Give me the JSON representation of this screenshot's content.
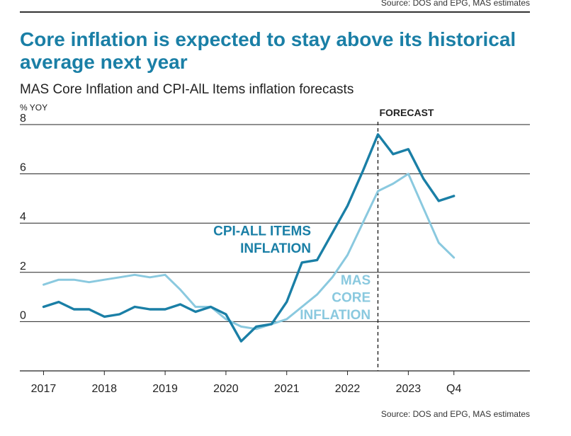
{
  "source_top": "Source: DOS and EPG, MAS estimates",
  "title": "Core inflation is expected to stay above its historical average next year",
  "subtitle": "MAS Core Inflation and CPI-AlL Items inflation forecasts",
  "source_bottom": "Source: DOS and EPG, MAS estimates",
  "colors": {
    "title": "#1a7fa6",
    "cpi_line": "#1a7fa6",
    "core_line": "#8ac9df",
    "grid": "#222222"
  },
  "chart_data": {
    "type": "line",
    "title": "Core inflation is expected to stay above its historical average next year",
    "ylabel": "% YOY",
    "ylim": [
      -2,
      8
    ],
    "yticks": [
      0,
      2,
      4,
      6,
      8
    ],
    "ytick_labels": [
      "0",
      "2",
      "4",
      "6",
      "8"
    ],
    "x_range": [
      2016.75,
      2025.0
    ],
    "xticks": [
      2017,
      2018,
      2019,
      2020,
      2021,
      2022,
      2023,
      2023.75
    ],
    "xtick_labels": [
      "2017",
      "2018",
      "2019",
      "2020",
      "2021",
      "2022",
      "2023",
      "Q4"
    ],
    "forecast_x": 2022.5,
    "forecast_label": "FORECAST",
    "series": [
      {
        "name": "CPI-ALL ITEMS INFLATION",
        "label_lines": [
          "CPI-ALL ITEMS",
          "INFLATION"
        ],
        "label_align": "end",
        "label_x": 2021.4,
        "label_y": [
          3.5,
          2.8
        ],
        "x": [
          2017.0,
          2017.25,
          2017.5,
          2017.75,
          2018.0,
          2018.25,
          2018.5,
          2018.75,
          2019.0,
          2019.25,
          2019.5,
          2019.75,
          2020.0,
          2020.25,
          2020.5,
          2020.75,
          2021.0,
          2021.25,
          2021.5,
          2021.75,
          2022.0,
          2022.25,
          2022.5,
          2022.75,
          2023.0,
          2023.25,
          2023.5,
          2023.75
        ],
        "values": [
          0.6,
          0.8,
          0.5,
          0.5,
          0.2,
          0.3,
          0.6,
          0.5,
          0.5,
          0.7,
          0.4,
          0.6,
          0.3,
          -0.8,
          -0.2,
          -0.1,
          0.8,
          2.4,
          2.5,
          3.6,
          4.7,
          6.1,
          7.6,
          6.8,
          7.0,
          5.8,
          4.9,
          5.1
        ]
      },
      {
        "name": "MAS CORE INFLATION",
        "label_lines": [
          "MAS",
          "CORE",
          "INFLATION"
        ],
        "label_align": "end",
        "label_x": 2022.38,
        "label_y": [
          1.5,
          0.8,
          0.1
        ],
        "x": [
          2017.0,
          2017.25,
          2017.5,
          2017.75,
          2018.0,
          2018.25,
          2018.5,
          2018.75,
          2019.0,
          2019.25,
          2019.5,
          2019.75,
          2020.0,
          2020.25,
          2020.5,
          2020.75,
          2021.0,
          2021.25,
          2021.5,
          2021.75,
          2022.0,
          2022.25,
          2022.5,
          2022.75,
          2023.0,
          2023.25,
          2023.5,
          2023.75
        ],
        "values": [
          1.5,
          1.7,
          1.7,
          1.6,
          1.7,
          1.8,
          1.9,
          1.8,
          1.9,
          1.3,
          0.6,
          0.6,
          0.1,
          -0.2,
          -0.3,
          -0.1,
          0.1,
          0.6,
          1.1,
          1.8,
          2.7,
          4.0,
          5.3,
          5.6,
          6.0,
          4.6,
          3.2,
          2.6
        ]
      }
    ]
  }
}
